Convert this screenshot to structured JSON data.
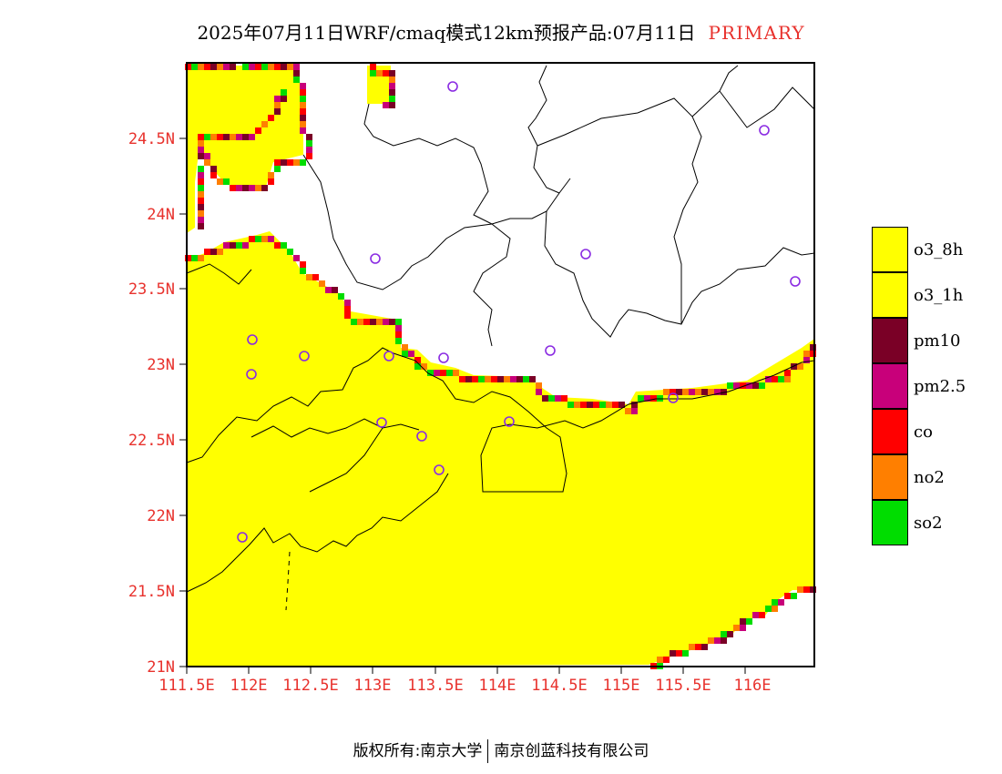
{
  "title": {
    "main": "2025年07月11日WRF/cmaq模式12km预报产品:07月11日",
    "tag": "PRIMARY"
  },
  "axes": {
    "lon_ticks": [
      "111.5E",
      "112E",
      "112.5E",
      "113E",
      "113.5E",
      "114E",
      "114.5E",
      "115E",
      "115.5E",
      "116E"
    ],
    "lat_ticks": [
      "21N",
      "21.5N",
      "22N",
      "22.5N",
      "23N",
      "23.5N",
      "24N",
      "24.5N"
    ]
  },
  "legend": [
    {
      "label": "o3_8h",
      "color": "#ffff00"
    },
    {
      "label": "o3_1h",
      "color": "#ffff00"
    },
    {
      "label": "pm10",
      "color": "#7a0026"
    },
    {
      "label": "pm2.5",
      "color": "#c8007a"
    },
    {
      "label": "co",
      "color": "#ff0000"
    },
    {
      "label": "no2",
      "color": "#ff7f00"
    },
    {
      "label": "so2",
      "color": "#00dd00"
    }
  ],
  "footer": {
    "left": "版权所有:南京大学",
    "right": "南京创蓝科技有限公司"
  }
}
